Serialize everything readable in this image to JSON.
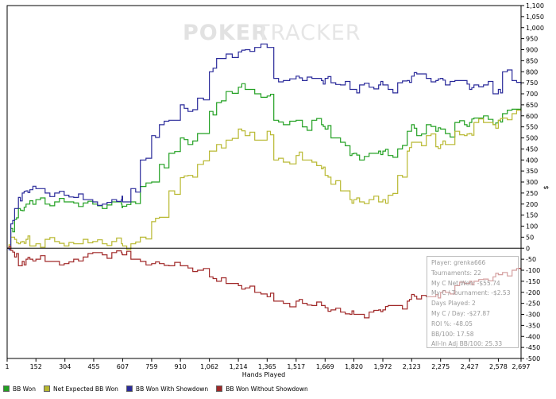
{
  "watermark": {
    "bold": "POKER",
    "thin": "TRACKER"
  },
  "chart_data": {
    "type": "line",
    "xlabel": "Hands Played",
    "ylabel": "$",
    "xlim": [
      1,
      2697
    ],
    "ylim": [
      -500,
      1100
    ],
    "x_ticks": [
      "1",
      "152",
      "304",
      "455",
      "607",
      "759",
      "910",
      "1,062",
      "1,214",
      "1,365",
      "1,517",
      "1,669",
      "1,820",
      "1,972",
      "2,123",
      "2,275",
      "2,427",
      "2,578",
      "2,697"
    ],
    "x_tick_values": [
      1,
      152,
      304,
      455,
      607,
      759,
      910,
      1062,
      1214,
      1365,
      1517,
      1669,
      1820,
      1972,
      2123,
      2275,
      2427,
      2578,
      2697
    ],
    "y_ticks": [
      "1,100",
      "1,050",
      "1,000",
      "950",
      "900",
      "850",
      "800",
      "750",
      "700",
      "650",
      "600",
      "550",
      "500",
      "450",
      "400",
      "350",
      "300",
      "250",
      "200",
      "150",
      "100",
      "50",
      "0",
      "-50",
      "-100",
      "-150",
      "-200",
      "-250",
      "-300",
      "-350",
      "-400",
      "-450",
      "-500"
    ],
    "y_tick_values": [
      1100,
      1050,
      1000,
      950,
      900,
      850,
      800,
      750,
      700,
      650,
      600,
      550,
      500,
      450,
      400,
      350,
      300,
      250,
      200,
      150,
      100,
      50,
      0,
      -50,
      -100,
      -150,
      -200,
      -250,
      -300,
      -350,
      -400,
      -450,
      -500
    ],
    "grid": false,
    "legend_position": "bottom",
    "series": [
      {
        "name": "BB Won",
        "color": "#22a022",
        "x": [
          1,
          20,
          40,
          60,
          80,
          100,
          120,
          152,
          200,
          250,
          300,
          350,
          400,
          450,
          500,
          550,
          600,
          607,
          650,
          700,
          759,
          800,
          850,
          910,
          950,
          1000,
          1062,
          1100,
          1150,
          1214,
          1250,
          1300,
          1365,
          1400,
          1450,
          1517,
          1550,
          1600,
          1650,
          1669,
          1700,
          1750,
          1800,
          1820,
          1850,
          1900,
          1950,
          1972,
          2000,
          2050,
          2100,
          2123,
          2150,
          2200,
          2250,
          2275,
          2300,
          2350,
          2400,
          2427,
          2450,
          2500,
          2550,
          2578,
          2600,
          2650,
          2697
        ],
        "y": [
          0,
          90,
          130,
          180,
          170,
          200,
          215,
          220,
          200,
          210,
          210,
          205,
          205,
          200,
          180,
          210,
          200,
          190,
          210,
          280,
          300,
          380,
          430,
          500,
          470,
          520,
          620,
          660,
          710,
          730,
          720,
          700,
          690,
          580,
          560,
          580,
          550,
          580,
          560,
          540,
          500,
          480,
          420,
          430,
          400,
          430,
          440,
          440,
          420,
          450,
          530,
          560,
          510,
          560,
          530,
          540,
          520,
          570,
          560,
          570,
          590,
          600,
          560,
          580,
          610,
          630,
          640
        ]
      },
      {
        "name": "Net Expected BB Won",
        "color": "#b8b830",
        "x": [
          1,
          20,
          40,
          60,
          80,
          100,
          120,
          152,
          200,
          250,
          300,
          350,
          400,
          450,
          500,
          550,
          600,
          607,
          650,
          700,
          759,
          800,
          850,
          910,
          950,
          1000,
          1062,
          1100,
          1150,
          1214,
          1250,
          1300,
          1365,
          1400,
          1450,
          1517,
          1550,
          1600,
          1650,
          1669,
          1700,
          1750,
          1800,
          1820,
          1850,
          1900,
          1950,
          1972,
          2000,
          2050,
          2100,
          2123,
          2150,
          2200,
          2250,
          2275,
          2300,
          2350,
          2400,
          2427,
          2450,
          2500,
          2550,
          2578,
          2600,
          2650,
          2697
        ],
        "y": [
          0,
          50,
          40,
          20,
          30,
          40,
          10,
          20,
          40,
          30,
          10,
          20,
          40,
          30,
          20,
          30,
          20,
          10,
          20,
          50,
          120,
          140,
          260,
          320,
          330,
          380,
          440,
          470,
          490,
          540,
          510,
          490,
          530,
          400,
          390,
          420,
          400,
          390,
          360,
          330,
          290,
          260,
          220,
          220,
          210,
          220,
          210,
          220,
          240,
          330,
          440,
          480,
          480,
          510,
          460,
          470,
          470,
          530,
          510,
          520,
          570,
          570,
          560,
          580,
          590,
          610,
          620
        ]
      },
      {
        "name": "BB Won With Showdown",
        "color": "#2a2a9a",
        "x": [
          1,
          20,
          40,
          60,
          80,
          100,
          120,
          152,
          200,
          250,
          300,
          350,
          400,
          450,
          500,
          550,
          600,
          607,
          650,
          700,
          759,
          800,
          850,
          910,
          950,
          1000,
          1062,
          1100,
          1150,
          1214,
          1250,
          1300,
          1365,
          1400,
          1450,
          1517,
          1550,
          1600,
          1650,
          1669,
          1700,
          1750,
          1800,
          1820,
          1850,
          1900,
          1950,
          1972,
          2000,
          2050,
          2100,
          2123,
          2150,
          2200,
          2250,
          2275,
          2300,
          2350,
          2400,
          2427,
          2450,
          2500,
          2550,
          2578,
          2600,
          2650,
          2697
        ],
        "y": [
          0,
          110,
          180,
          230,
          250,
          260,
          265,
          270,
          250,
          250,
          240,
          230,
          220,
          210,
          200,
          220,
          220,
          210,
          270,
          400,
          510,
          560,
          580,
          650,
          620,
          680,
          800,
          860,
          880,
          890,
          900,
          910,
          910,
          770,
          760,
          780,
          760,
          770,
          760,
          770,
          750,
          740,
          720,
          720,
          740,
          730,
          740,
          740,
          720,
          750,
          760,
          780,
          790,
          770,
          760,
          770,
          740,
          760,
          760,
          720,
          740,
          740,
          700,
          720,
          800,
          760,
          740
        ]
      },
      {
        "name": "BB Won Without Showdown",
        "color": "#a02828",
        "x": [
          1,
          20,
          40,
          60,
          80,
          100,
          120,
          152,
          200,
          250,
          300,
          350,
          400,
          450,
          500,
          550,
          600,
          607,
          650,
          700,
          759,
          800,
          850,
          910,
          950,
          1000,
          1062,
          1100,
          1150,
          1214,
          1250,
          1300,
          1365,
          1400,
          1450,
          1517,
          1550,
          1600,
          1650,
          1669,
          1700,
          1750,
          1800,
          1820,
          1850,
          1900,
          1950,
          1972,
          2000,
          2050,
          2100,
          2123,
          2150,
          2200,
          2250,
          2275,
          2300,
          2350,
          2400,
          2427,
          2450,
          2500,
          2550,
          2578,
          2600,
          2650,
          2697
        ],
        "y": [
          0,
          -10,
          -40,
          -80,
          -60,
          -50,
          -50,
          -50,
          -60,
          -60,
          -70,
          -50,
          -40,
          -20,
          -30,
          -20,
          -20,
          -30,
          -50,
          -60,
          -70,
          -70,
          -80,
          -80,
          -90,
          -100,
          -130,
          -150,
          -160,
          -170,
          -180,
          -200,
          -220,
          -240,
          -250,
          -240,
          -250,
          -260,
          -260,
          -270,
          -280,
          -290,
          -300,
          -300,
          -300,
          -290,
          -280,
          -280,
          -260,
          -260,
          -240,
          -210,
          -230,
          -220,
          -210,
          -200,
          -200,
          -170,
          -160,
          -150,
          -150,
          -140,
          -130,
          -120,
          -110,
          -100,
          -100
        ]
      }
    ]
  },
  "legend": [
    {
      "label": "BB Won",
      "color": "#22a022"
    },
    {
      "label": "Net Expected BB Won",
      "color": "#b8b830"
    },
    {
      "label": "BB Won With Showdown",
      "color": "#2a2a9a"
    },
    {
      "label": "BB Won Without Showdown",
      "color": "#a02828"
    }
  ],
  "info_box": [
    "Player: grenka666",
    "Tournaments: 22",
    "My C Net Won: -$55.74",
    "My C / Tournament: -$2.53",
    "Days Played: 2",
    "My C / Day: -$27.87",
    "ROI %: -48.05",
    "BB/100: 17.58",
    "All-In Adj BB/100: 25.33"
  ]
}
